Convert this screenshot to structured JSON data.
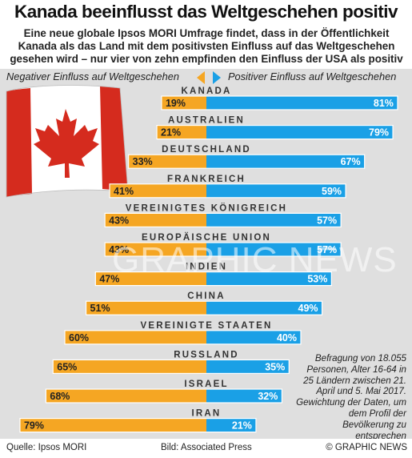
{
  "header": {
    "title": "Kanada beeinflusst das Weltgeschehen positiv",
    "subtitle": "Eine neue globale Ipsos MORI Umfrage findet, dass in der Öffentlichkeit Kanada als das Land mit dem positivsten Einfluss auf das Weltgeschehen gesehen wird – nur vier von zehn empfinden den Einfluss der USA als positiv"
  },
  "legend": {
    "negative_label": "Negativer Einfluss auf Weltgeschehen",
    "positive_label": "Positiver Einfluss auf Weltgeschehen"
  },
  "colors": {
    "negative": "#f5a623",
    "positive": "#1aa0e6",
    "panel": "#dfdfdf",
    "flag_red": "#d52b1e"
  },
  "watermark": "GRAPHIC NEWS",
  "note": "Befragung von 18.055 Personen, Alter 16-64 in 25 Ländern zwischen 21. April und 5. Mai 2017. Gewichtung der Daten, um dem Profil der Bevölkerung zu entsprechen",
  "footer": {
    "source": "Quelle: Ipsos MORI",
    "photo": "Bild: Associated Press",
    "copyright": "© GRAPHIC NEWS"
  },
  "chart_data": {
    "type": "bar",
    "orientation": "horizontal-diverging",
    "categories": [
      "KANADA",
      "AUSTRALIEN",
      "DEUTSCHLAND",
      "FRANKREICH",
      "VEREINIGTES KÖNIGREICH",
      "EUROPÄISCHE UNION",
      "INDIEN",
      "CHINA",
      "VEREINIGTE STAATEN",
      "RUSSLAND",
      "ISRAEL",
      "IRAN"
    ],
    "series": [
      {
        "name": "Negativer Einfluss auf Weltgeschehen",
        "values": [
          19,
          21,
          33,
          41,
          43,
          43,
          47,
          51,
          60,
          65,
          68,
          79
        ],
        "labels": [
          "19%",
          "21%",
          "33%",
          "41%",
          "43%",
          "43%",
          "47%",
          "51%",
          "60%",
          "65%",
          "68%",
          "79%"
        ]
      },
      {
        "name": "Positiver Einfluss auf Weltgeschehen",
        "values": [
          81,
          79,
          67,
          59,
          57,
          57,
          53,
          49,
          40,
          35,
          32,
          21
        ],
        "labels": [
          "81%",
          "79%",
          "67%",
          "59%",
          "57%",
          "57%",
          "53%",
          "49%",
          "40%",
          "35%",
          "32%",
          "21%"
        ]
      }
    ],
    "unit": "%",
    "xlim": [
      0,
      100
    ],
    "grid": false,
    "legend": "top"
  }
}
